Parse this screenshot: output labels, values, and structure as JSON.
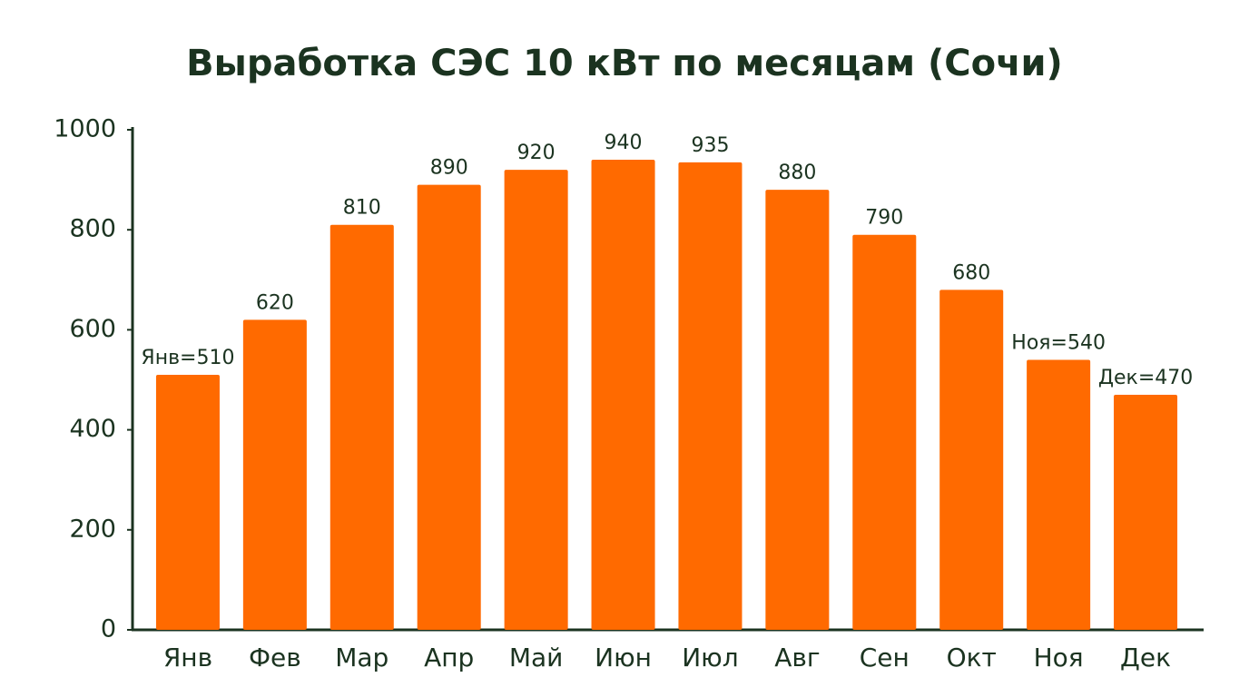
{
  "chart_data": {
    "type": "bar",
    "title": "Выработка СЭС 10 кВт по месяцам (Сочи)",
    "categories": [
      "Янв",
      "Фев",
      "Мар",
      "Апр",
      "Май",
      "Июн",
      "Июл",
      "Авг",
      "Сен",
      "Окт",
      "Ноя",
      "Дек"
    ],
    "values": [
      510,
      620,
      810,
      890,
      920,
      940,
      935,
      880,
      790,
      680,
      540,
      470
    ],
    "value_labels": [
      "Янв=510",
      "620",
      "810",
      "890",
      "920",
      "940",
      "935",
      "880",
      "790",
      "680",
      "Ноя=540",
      "Дек=470"
    ],
    "color": "#ff6a00",
    "ylim": [
      0,
      1000
    ],
    "yticks": [
      0,
      200,
      400,
      600,
      800,
      1000
    ],
    "grid": false
  }
}
